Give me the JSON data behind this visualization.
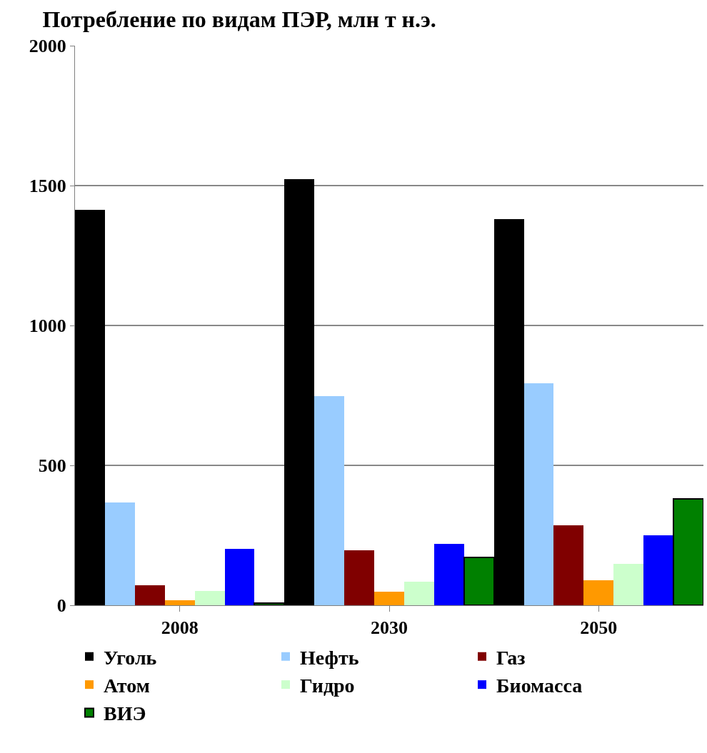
{
  "chart_data": {
    "type": "bar",
    "title": "Потребление по видам ПЭР, млн т н.э.",
    "categories": [
      "2008",
      "2030",
      "2050"
    ],
    "series": [
      {
        "name": "Уголь",
        "color": "#000000",
        "values": [
          1413,
          1523,
          1380
        ]
      },
      {
        "name": "Нефть",
        "color": "#99ccff",
        "values": [
          367,
          747,
          793
        ]
      },
      {
        "name": "Газ",
        "color": "#800000",
        "values": [
          71,
          196,
          286
        ]
      },
      {
        "name": "Атом",
        "color": "#ff9900",
        "values": [
          18,
          48,
          89
        ]
      },
      {
        "name": "Гидро",
        "color": "#ccffcc",
        "values": [
          51,
          84,
          148
        ]
      },
      {
        "name": "Биомасса",
        "color": "#0000ff",
        "values": [
          202,
          219,
          250
        ]
      },
      {
        "name": "ВИЭ",
        "color": "#008000",
        "values": [
          8,
          171,
          380
        ]
      }
    ],
    "ylim": [
      0,
      2000
    ],
    "yticks": [
      0,
      500,
      1000,
      1500,
      2000
    ],
    "grid": "y",
    "legend": "bottom"
  }
}
